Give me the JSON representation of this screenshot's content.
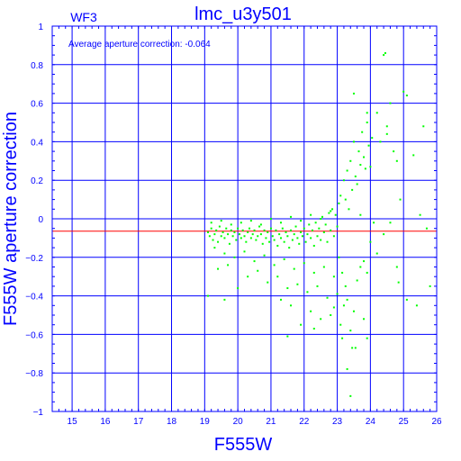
{
  "chart_data": {
    "type": "scatter",
    "title": "lmc_u3y501",
    "chip_label": "WF3",
    "annotation": "Average aperture correction: -0.064",
    "xlabel": "F555W",
    "ylabel": "F555W aperture correction",
    "xlim": [
      14.4,
      26
    ],
    "ylim": [
      -1,
      1
    ],
    "x_ticks": [
      "15",
      "16",
      "17",
      "18",
      "19",
      "20",
      "21",
      "22",
      "23",
      "24",
      "25",
      "26"
    ],
    "y_ticks": [
      "1",
      "0.8",
      "0.6",
      "0.4",
      "0.2",
      "0",
      "−0.2",
      "−0.4",
      "−0.6",
      "−0.8",
      "−1"
    ],
    "grid": true,
    "reference_line": {
      "y": -0.064,
      "color": "#ff0000"
    },
    "colors": {
      "axes": "#0000ff",
      "grid": "#0000ff",
      "points": "#00ff00",
      "reference": "#ff0000"
    },
    "points": [
      [
        19.1,
        -0.07
      ],
      [
        19.15,
        -0.09
      ],
      [
        19.2,
        -0.05
      ],
      [
        19.25,
        -0.11
      ],
      [
        19.3,
        -0.08
      ],
      [
        19.35,
        -0.06
      ],
      [
        19.4,
        -0.12
      ],
      [
        19.45,
        -0.04
      ],
      [
        19.5,
        -0.09
      ],
      [
        19.55,
        -0.07
      ],
      [
        19.6,
        -0.1
      ],
      [
        19.65,
        -0.05
      ],
      [
        19.7,
        -0.08
      ],
      [
        19.75,
        -0.13
      ],
      [
        19.8,
        -0.06
      ],
      [
        19.85,
        -0.09
      ],
      [
        19.9,
        -0.07
      ],
      [
        19.95,
        -0.11
      ],
      [
        20.0,
        -0.05
      ],
      [
        20.05,
        -0.08
      ],
      [
        20.1,
        -0.1
      ],
      [
        20.15,
        -0.06
      ],
      [
        20.2,
        -0.09
      ],
      [
        20.25,
        -0.12
      ],
      [
        20.3,
        -0.07
      ],
      [
        20.35,
        -0.05
      ],
      [
        20.4,
        -0.1
      ],
      [
        20.45,
        -0.08
      ],
      [
        20.5,
        -0.06
      ],
      [
        20.55,
        -0.11
      ],
      [
        20.6,
        -0.09
      ],
      [
        20.65,
        -0.04
      ],
      [
        20.7,
        -0.08
      ],
      [
        20.75,
        -0.13
      ],
      [
        20.8,
        -0.06
      ],
      [
        20.85,
        -0.1
      ],
      [
        20.9,
        -0.07
      ],
      [
        20.95,
        -0.12
      ],
      [
        21.0,
        -0.05
      ],
      [
        21.05,
        -0.09
      ],
      [
        21.1,
        -0.11
      ],
      [
        21.15,
        -0.06
      ],
      [
        21.2,
        -0.14
      ],
      [
        21.25,
        -0.08
      ],
      [
        21.3,
        -0.1
      ],
      [
        21.35,
        -0.05
      ],
      [
        21.4,
        -0.12
      ],
      [
        21.45,
        -0.07
      ],
      [
        21.5,
        -0.09
      ],
      [
        21.55,
        -0.15
      ],
      [
        21.6,
        -0.06
      ],
      [
        21.65,
        -0.11
      ],
      [
        21.7,
        -0.08
      ],
      [
        21.75,
        -0.04
      ],
      [
        21.8,
        -0.1
      ],
      [
        21.85,
        -0.13
      ],
      [
        21.9,
        -0.07
      ],
      [
        21.95,
        -0.09
      ],
      [
        22.0,
        -0.05
      ],
      [
        22.05,
        -0.12
      ],
      [
        22.1,
        -0.08
      ],
      [
        22.15,
        -0.03
      ],
      [
        22.2,
        -0.1
      ],
      [
        22.25,
        -0.06
      ],
      [
        22.3,
        -0.14
      ],
      [
        22.35,
        -0.02
      ],
      [
        22.4,
        -0.09
      ],
      [
        22.45,
        -0.05
      ],
      [
        22.5,
        -0.11
      ],
      [
        22.55,
        0.01
      ],
      [
        22.6,
        -0.07
      ],
      [
        22.65,
        -0.03
      ],
      [
        22.7,
        -0.12
      ],
      [
        22.75,
        0.03
      ],
      [
        22.8,
        -0.06
      ],
      [
        22.85,
        0.05
      ],
      [
        22.9,
        -0.09
      ],
      [
        22.95,
        0.02
      ],
      [
        23.0,
        -0.04
      ],
      [
        23.05,
        0.08
      ],
      [
        19.3,
        -0.15
      ],
      [
        19.6,
        -0.18
      ],
      [
        19.9,
        -0.2
      ],
      [
        20.2,
        -0.17
      ],
      [
        20.5,
        -0.22
      ],
      [
        20.8,
        -0.19
      ],
      [
        21.1,
        -0.24
      ],
      [
        21.4,
        -0.21
      ],
      [
        21.7,
        -0.26
      ],
      [
        22.0,
        -0.23
      ],
      [
        22.3,
        -0.28
      ],
      [
        22.6,
        -0.25
      ],
      [
        22.9,
        -0.3
      ],
      [
        19.2,
        -0.02
      ],
      [
        19.5,
        -0.01
      ],
      [
        19.8,
        -0.03
      ],
      [
        20.1,
        -0.02
      ],
      [
        20.4,
        -0.01
      ],
      [
        20.7,
        -0.03
      ],
      [
        21.0,
        0.0
      ],
      [
        21.3,
        -0.02
      ],
      [
        21.6,
        0.01
      ],
      [
        21.9,
        -0.01
      ],
      [
        22.2,
        0.02
      ],
      [
        22.5,
        0.0
      ],
      [
        22.8,
        0.04
      ],
      [
        19.4,
        -0.26
      ],
      [
        19.7,
        -0.24
      ],
      [
        20.3,
        -0.3
      ],
      [
        20.6,
        -0.27
      ],
      [
        20.9,
        -0.33
      ],
      [
        21.2,
        -0.3
      ],
      [
        21.5,
        -0.36
      ],
      [
        21.8,
        -0.34
      ],
      [
        22.1,
        -0.38
      ],
      [
        22.4,
        -0.35
      ],
      [
        22.7,
        -0.41
      ],
      [
        23.0,
        -0.39
      ],
      [
        21.3,
        -0.42
      ],
      [
        21.6,
        -0.45
      ],
      [
        22.2,
        -0.48
      ],
      [
        22.5,
        -0.52
      ],
      [
        22.8,
        -0.5
      ],
      [
        20.0,
        -0.36
      ],
      [
        19.6,
        -0.42
      ],
      [
        19.1,
        -0.4
      ],
      [
        21.9,
        -0.55
      ],
      [
        22.3,
        -0.57
      ],
      [
        23.1,
        -0.55
      ],
      [
        21.5,
        -0.61
      ],
      [
        23.2,
        -0.45
      ],
      [
        23.5,
        -0.48
      ],
      [
        23.8,
        -0.52
      ],
      [
        22.9,
        -0.46
      ],
      [
        23.1,
        0.12
      ],
      [
        23.2,
        0.2
      ],
      [
        23.25,
        0.1
      ],
      [
        23.3,
        0.25
      ],
      [
        23.35,
        0.05
      ],
      [
        23.4,
        0.3
      ],
      [
        23.45,
        0.15
      ],
      [
        23.5,
        0.4
      ],
      [
        23.55,
        0.22
      ],
      [
        23.6,
        0.18
      ],
      [
        23.65,
        0.35
      ],
      [
        23.7,
        0.28
      ],
      [
        23.75,
        0.45
      ],
      [
        23.8,
        0.32
      ],
      [
        23.85,
        0.26
      ],
      [
        23.9,
        0.5
      ],
      [
        23.95,
        0.38
      ],
      [
        24.0,
        0.27
      ],
      [
        24.05,
        0.42
      ],
      [
        24.2,
        0.55
      ],
      [
        24.3,
        0.4
      ],
      [
        24.4,
        0.85
      ],
      [
        24.45,
        0.86
      ],
      [
        24.5,
        0.48
      ],
      [
        24.6,
        0.6
      ],
      [
        24.7,
        0.35
      ],
      [
        24.8,
        0.3
      ],
      [
        24.9,
        0.1
      ],
      [
        25.0,
        0.66
      ],
      [
        25.1,
        0.64
      ],
      [
        25.3,
        0.33
      ],
      [
        25.5,
        0.02
      ],
      [
        25.6,
        0.48
      ],
      [
        25.7,
        -0.05
      ],
      [
        23.5,
        0.65
      ],
      [
        23.9,
        0.55
      ],
      [
        24.5,
        0.44
      ],
      [
        24.1,
        -0.02
      ],
      [
        23.7,
        0.02
      ],
      [
        23.05,
        -0.2
      ],
      [
        23.15,
        -0.28
      ],
      [
        23.25,
        -0.35
      ],
      [
        23.3,
        -0.42
      ],
      [
        23.4,
        -0.58
      ],
      [
        23.45,
        -0.67
      ],
      [
        23.55,
        -0.67
      ],
      [
        23.4,
        -0.92
      ],
      [
        23.6,
        -0.32
      ],
      [
        23.7,
        -0.25
      ],
      [
        23.8,
        -0.22
      ],
      [
        23.9,
        -0.28
      ],
      [
        24.0,
        -0.12
      ],
      [
        24.2,
        -0.18
      ],
      [
        24.4,
        -0.08
      ],
      [
        24.6,
        -0.02
      ],
      [
        24.8,
        -0.25
      ],
      [
        24.85,
        -0.33
      ],
      [
        25.1,
        -0.42
      ],
      [
        25.4,
        -0.45
      ],
      [
        25.8,
        -0.35
      ],
      [
        23.3,
        -0.78
      ],
      [
        23.9,
        -0.62
      ],
      [
        23.15,
        -0.62
      ]
    ]
  }
}
